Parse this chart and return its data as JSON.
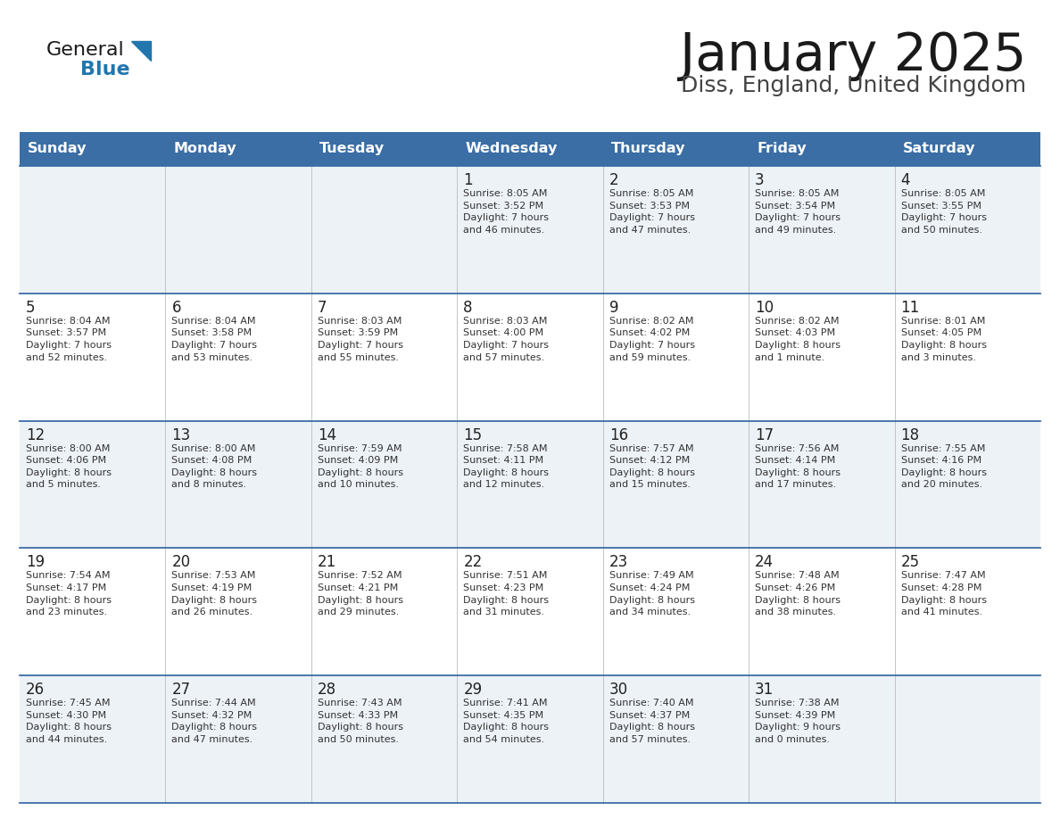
{
  "title": "January 2025",
  "subtitle": "Diss, England, United Kingdom",
  "header_bg_color": "#3a6ea5",
  "header_text_color": "#ffffff",
  "day_names": [
    "Sunday",
    "Monday",
    "Tuesday",
    "Wednesday",
    "Thursday",
    "Friday",
    "Saturday"
  ],
  "cell_bg_even": "#edf2f7",
  "cell_bg_odd": "#ffffff",
  "cell_border_color": "#3a6ea5",
  "date_text_color": "#222222",
  "info_text_color": "#333333",
  "logo_blue": "#2176ae",
  "logo_dark": "#1a1a1a",
  "weeks": [
    [
      {
        "date": "",
        "sunrise": "",
        "sunset": "",
        "daylight": ""
      },
      {
        "date": "",
        "sunrise": "",
        "sunset": "",
        "daylight": ""
      },
      {
        "date": "",
        "sunrise": "",
        "sunset": "",
        "daylight": ""
      },
      {
        "date": "1",
        "sunrise": "Sunrise: 8:05 AM",
        "sunset": "Sunset: 3:52 PM",
        "daylight": "Daylight: 7 hours\nand 46 minutes."
      },
      {
        "date": "2",
        "sunrise": "Sunrise: 8:05 AM",
        "sunset": "Sunset: 3:53 PM",
        "daylight": "Daylight: 7 hours\nand 47 minutes."
      },
      {
        "date": "3",
        "sunrise": "Sunrise: 8:05 AM",
        "sunset": "Sunset: 3:54 PM",
        "daylight": "Daylight: 7 hours\nand 49 minutes."
      },
      {
        "date": "4",
        "sunrise": "Sunrise: 8:05 AM",
        "sunset": "Sunset: 3:55 PM",
        "daylight": "Daylight: 7 hours\nand 50 minutes."
      }
    ],
    [
      {
        "date": "5",
        "sunrise": "Sunrise: 8:04 AM",
        "sunset": "Sunset: 3:57 PM",
        "daylight": "Daylight: 7 hours\nand 52 minutes."
      },
      {
        "date": "6",
        "sunrise": "Sunrise: 8:04 AM",
        "sunset": "Sunset: 3:58 PM",
        "daylight": "Daylight: 7 hours\nand 53 minutes."
      },
      {
        "date": "7",
        "sunrise": "Sunrise: 8:03 AM",
        "sunset": "Sunset: 3:59 PM",
        "daylight": "Daylight: 7 hours\nand 55 minutes."
      },
      {
        "date": "8",
        "sunrise": "Sunrise: 8:03 AM",
        "sunset": "Sunset: 4:00 PM",
        "daylight": "Daylight: 7 hours\nand 57 minutes."
      },
      {
        "date": "9",
        "sunrise": "Sunrise: 8:02 AM",
        "sunset": "Sunset: 4:02 PM",
        "daylight": "Daylight: 7 hours\nand 59 minutes."
      },
      {
        "date": "10",
        "sunrise": "Sunrise: 8:02 AM",
        "sunset": "Sunset: 4:03 PM",
        "daylight": "Daylight: 8 hours\nand 1 minute."
      },
      {
        "date": "11",
        "sunrise": "Sunrise: 8:01 AM",
        "sunset": "Sunset: 4:05 PM",
        "daylight": "Daylight: 8 hours\nand 3 minutes."
      }
    ],
    [
      {
        "date": "12",
        "sunrise": "Sunrise: 8:00 AM",
        "sunset": "Sunset: 4:06 PM",
        "daylight": "Daylight: 8 hours\nand 5 minutes."
      },
      {
        "date": "13",
        "sunrise": "Sunrise: 8:00 AM",
        "sunset": "Sunset: 4:08 PM",
        "daylight": "Daylight: 8 hours\nand 8 minutes."
      },
      {
        "date": "14",
        "sunrise": "Sunrise: 7:59 AM",
        "sunset": "Sunset: 4:09 PM",
        "daylight": "Daylight: 8 hours\nand 10 minutes."
      },
      {
        "date": "15",
        "sunrise": "Sunrise: 7:58 AM",
        "sunset": "Sunset: 4:11 PM",
        "daylight": "Daylight: 8 hours\nand 12 minutes."
      },
      {
        "date": "16",
        "sunrise": "Sunrise: 7:57 AM",
        "sunset": "Sunset: 4:12 PM",
        "daylight": "Daylight: 8 hours\nand 15 minutes."
      },
      {
        "date": "17",
        "sunrise": "Sunrise: 7:56 AM",
        "sunset": "Sunset: 4:14 PM",
        "daylight": "Daylight: 8 hours\nand 17 minutes."
      },
      {
        "date": "18",
        "sunrise": "Sunrise: 7:55 AM",
        "sunset": "Sunset: 4:16 PM",
        "daylight": "Daylight: 8 hours\nand 20 minutes."
      }
    ],
    [
      {
        "date": "19",
        "sunrise": "Sunrise: 7:54 AM",
        "sunset": "Sunset: 4:17 PM",
        "daylight": "Daylight: 8 hours\nand 23 minutes."
      },
      {
        "date": "20",
        "sunrise": "Sunrise: 7:53 AM",
        "sunset": "Sunset: 4:19 PM",
        "daylight": "Daylight: 8 hours\nand 26 minutes."
      },
      {
        "date": "21",
        "sunrise": "Sunrise: 7:52 AM",
        "sunset": "Sunset: 4:21 PM",
        "daylight": "Daylight: 8 hours\nand 29 minutes."
      },
      {
        "date": "22",
        "sunrise": "Sunrise: 7:51 AM",
        "sunset": "Sunset: 4:23 PM",
        "daylight": "Daylight: 8 hours\nand 31 minutes."
      },
      {
        "date": "23",
        "sunrise": "Sunrise: 7:49 AM",
        "sunset": "Sunset: 4:24 PM",
        "daylight": "Daylight: 8 hours\nand 34 minutes."
      },
      {
        "date": "24",
        "sunrise": "Sunrise: 7:48 AM",
        "sunset": "Sunset: 4:26 PM",
        "daylight": "Daylight: 8 hours\nand 38 minutes."
      },
      {
        "date": "25",
        "sunrise": "Sunrise: 7:47 AM",
        "sunset": "Sunset: 4:28 PM",
        "daylight": "Daylight: 8 hours\nand 41 minutes."
      }
    ],
    [
      {
        "date": "26",
        "sunrise": "Sunrise: 7:45 AM",
        "sunset": "Sunset: 4:30 PM",
        "daylight": "Daylight: 8 hours\nand 44 minutes."
      },
      {
        "date": "27",
        "sunrise": "Sunrise: 7:44 AM",
        "sunset": "Sunset: 4:32 PM",
        "daylight": "Daylight: 8 hours\nand 47 minutes."
      },
      {
        "date": "28",
        "sunrise": "Sunrise: 7:43 AM",
        "sunset": "Sunset: 4:33 PM",
        "daylight": "Daylight: 8 hours\nand 50 minutes."
      },
      {
        "date": "29",
        "sunrise": "Sunrise: 7:41 AM",
        "sunset": "Sunset: 4:35 PM",
        "daylight": "Daylight: 8 hours\nand 54 minutes."
      },
      {
        "date": "30",
        "sunrise": "Sunrise: 7:40 AM",
        "sunset": "Sunset: 4:37 PM",
        "daylight": "Daylight: 8 hours\nand 57 minutes."
      },
      {
        "date": "31",
        "sunrise": "Sunrise: 7:38 AM",
        "sunset": "Sunset: 4:39 PM",
        "daylight": "Daylight: 9 hours\nand 0 minutes."
      },
      {
        "date": "",
        "sunrise": "",
        "sunset": "",
        "daylight": ""
      }
    ]
  ]
}
